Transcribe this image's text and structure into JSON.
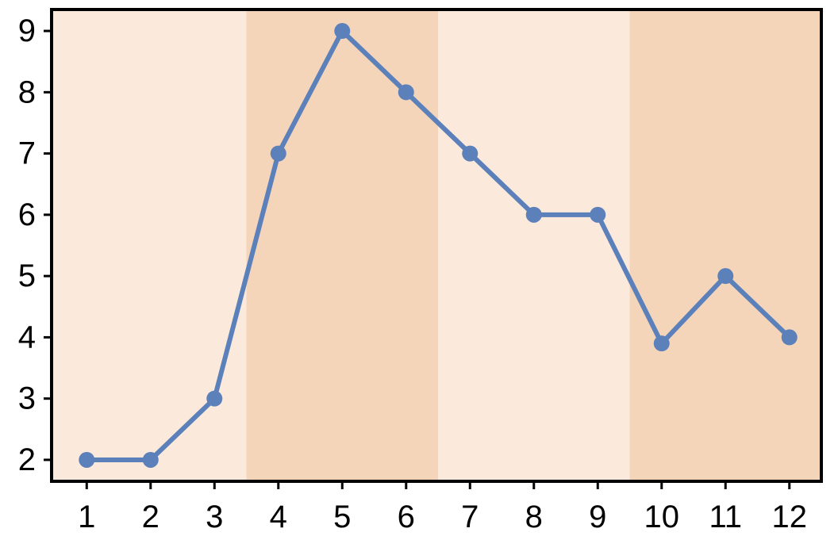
{
  "chart_data": {
    "type": "line",
    "title": "",
    "xlabel": "",
    "ylabel": "",
    "x": [
      1,
      2,
      3,
      4,
      5,
      6,
      7,
      8,
      9,
      10,
      11,
      12
    ],
    "series": [
      {
        "values": [
          2,
          2,
          3,
          7,
          9,
          8,
          7,
          6,
          6,
          3.9,
          5,
          4
        ]
      }
    ],
    "xticks": [
      "1",
      "2",
      "3",
      "4",
      "5",
      "6",
      "7",
      "8",
      "9",
      "10",
      "11",
      "12"
    ],
    "yticks": [
      "2",
      "3",
      "4",
      "5",
      "6",
      "7",
      "8",
      "9"
    ],
    "xlim": [
      0.45,
      12.5
    ],
    "ylim": [
      1.65,
      9.35
    ],
    "grid": false,
    "background_bands": [
      {
        "from": 0.45,
        "to": 3.5,
        "color": "#fbeadc"
      },
      {
        "from": 3.5,
        "to": 6.5,
        "color": "#f5d5b9"
      },
      {
        "from": 6.5,
        "to": 9.5,
        "color": "#fbeadc"
      },
      {
        "from": 9.5,
        "to": 12.5,
        "color": "#f5d5b9"
      }
    ],
    "colors": {
      "line": "#5b80ba",
      "marker": "#5b80ba",
      "axes": "#000000"
    }
  }
}
